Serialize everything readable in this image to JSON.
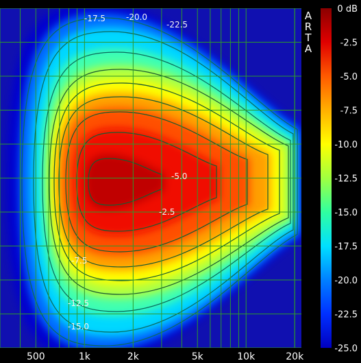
{
  "chart_data": {
    "type": "heatmap",
    "brand": "ARTA",
    "x_tick_labels": [
      "500",
      "1k",
      "2k",
      "5k",
      "10k",
      "20k"
    ],
    "x_tick_values": [
      500,
      1000,
      2000,
      5000,
      10000,
      20000
    ],
    "x_scale": "log",
    "xlim": [
      300,
      22000
    ],
    "colorbar": {
      "unit": "dB",
      "range": [
        -25,
        0
      ],
      "tick_labels": [
        "0 dB",
        "-2.5",
        "-5.0",
        "-7.5",
        "-10.0",
        "-12.5",
        "-15.0",
        "-17.5",
        "-20.0",
        "-22.5",
        "-25.0"
      ],
      "tick_values": [
        0,
        -2.5,
        -5,
        -7.5,
        -10,
        -12.5,
        -15,
        -17.5,
        -20,
        -22.5,
        -25
      ],
      "colors": [
        "#8b0000",
        "#e00000",
        "#ff5a00",
        "#ffb000",
        "#ffff00",
        "#a0ff40",
        "#30ffa0",
        "#00e0ff",
        "#0080ff",
        "#0030ff",
        "#0000c0"
      ]
    },
    "contour_labels": [
      "-17.5",
      "-20.0",
      "-22.5",
      "-5.0",
      "-2.5",
      "-7.5",
      "-12.5",
      "-15.0"
    ],
    "grid": true,
    "contour_levels": [
      -2.5,
      -5,
      -7.5,
      -10,
      -12.5,
      -15,
      -17.5,
      -20,
      -22.5
    ]
  }
}
